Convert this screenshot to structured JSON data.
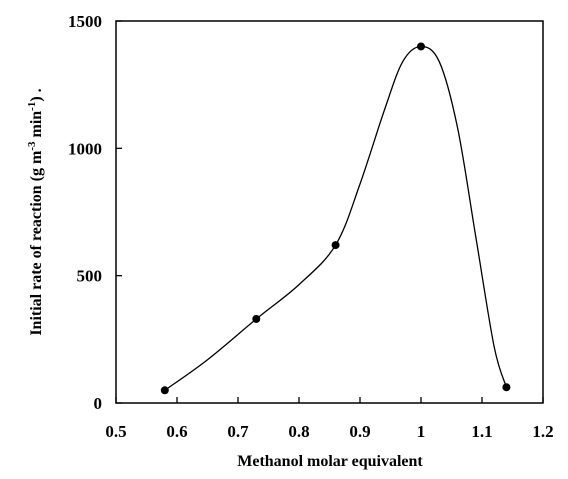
{
  "chart_data": {
    "type": "scatter",
    "xlabel": "Methanol molar equivalent",
    "ylabel": {
      "prefix": "Initial rate of reaction (g m",
      "sup1": "-3",
      "mid": " min",
      "sup2": "-1",
      "suffix": ")  ."
    },
    "xlim": [
      0.5,
      1.2
    ],
    "ylim": [
      0,
      1500
    ],
    "x_ticks": [
      0.5,
      0.6,
      0.7,
      0.8,
      0.9,
      1,
      1.1,
      1.2
    ],
    "x_tick_labels": [
      "0.5",
      "0.6",
      "0.7",
      "0.8",
      "0.9",
      "1",
      "1.1",
      "1.2"
    ],
    "y_ticks": [
      0,
      500,
      1000,
      1500
    ],
    "y_tick_labels": [
      "0",
      "500",
      "1000",
      "1500"
    ],
    "grid": false,
    "legend": "none",
    "points": [
      {
        "x": 0.58,
        "y": 50
      },
      {
        "x": 0.73,
        "y": 330
      },
      {
        "x": 0.86,
        "y": 620
      },
      {
        "x": 1.0,
        "y": 1400
      },
      {
        "x": 1.14,
        "y": 62
      }
    ],
    "fit_curve": [
      [
        0.58,
        50
      ],
      [
        0.65,
        170
      ],
      [
        0.73,
        330
      ],
      [
        0.8,
        465
      ],
      [
        0.86,
        620
      ],
      [
        0.9,
        860
      ],
      [
        0.94,
        1150
      ],
      [
        0.97,
        1340
      ],
      [
        1.0,
        1400
      ],
      [
        1.03,
        1340
      ],
      [
        1.06,
        1080
      ],
      [
        1.09,
        650
      ],
      [
        1.12,
        220
      ],
      [
        1.14,
        62
      ]
    ],
    "colors": {
      "axis": "#000000",
      "marker": "#000000",
      "line": "#000000"
    }
  }
}
